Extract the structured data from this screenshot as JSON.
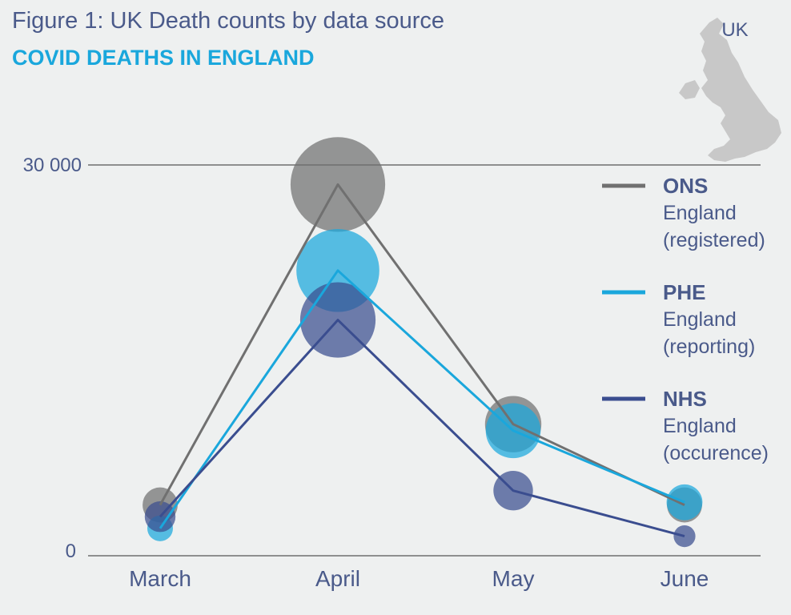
{
  "header": {
    "title": "Figure 1: UK Death counts by data source",
    "subtitle": "COVID DEATHS IN ENGLAND"
  },
  "map": {
    "icon": "uk-map-icon",
    "label": "UK"
  },
  "colors": {
    "ons": "#707070",
    "phe": "#1aa7dc",
    "nhs": "#3a4d8f",
    "text": "#4a5a8a",
    "axis": "#555555",
    "map": "#c8c8c8"
  },
  "chart_data": {
    "type": "line",
    "categories": [
      "March",
      "April",
      "May",
      "June"
    ],
    "ylim": [
      0,
      30000
    ],
    "yticks": [
      "0",
      "30 000"
    ],
    "legend_position": "right",
    "series": [
      {
        "key": "ons",
        "name": "ONS",
        "description": [
          "England",
          "(registered)"
        ],
        "values": [
          3900,
          28500,
          10100,
          3900
        ]
      },
      {
        "key": "phe",
        "name": "PHE",
        "description": [
          "England",
          "(reporting)"
        ],
        "values": [
          2100,
          21900,
          9600,
          4100
        ]
      },
      {
        "key": "nhs",
        "name": "NHS",
        "description": [
          "England",
          "(occurence)"
        ],
        "values": [
          3000,
          18100,
          5000,
          1500
        ]
      }
    ]
  }
}
